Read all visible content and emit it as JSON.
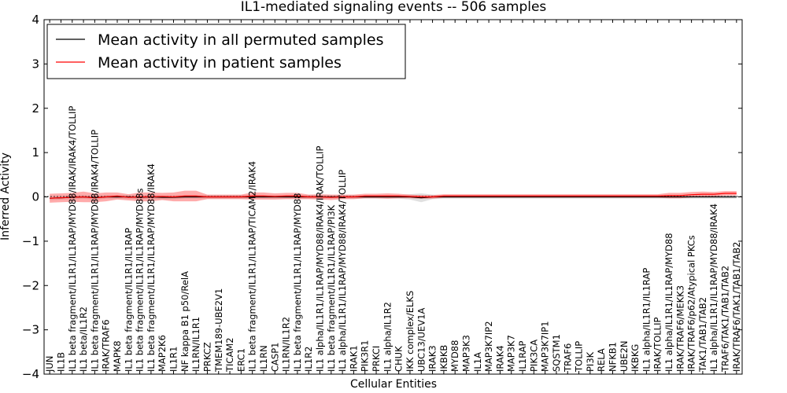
{
  "chart_data": {
    "type": "line",
    "title": "IL1-mediated signaling events -- 506 samples",
    "xlabel": "Cellular Entities",
    "ylabel": "Inferred Activity",
    "ylim": [
      -4,
      4
    ],
    "yticks": [
      -4,
      -3,
      -2,
      -1,
      0,
      1,
      2,
      3,
      4
    ],
    "ytick_labels": [
      "−4",
      "−3",
      "−2",
      "−1",
      "0",
      "1",
      "2",
      "3",
      "4"
    ],
    "legend_position": "upper-left",
    "categories": [
      "JUN",
      "IL1B",
      "IL1 beta fragment/IL1R1/IL1RAP/MYD88/IRAK/IRAK4/TOLLIP",
      "IL1 beta/IL1R2",
      "IL1 beta fragment/IL1R1/IL1RAP/MYD88/IRAK4/TOLLIP",
      "IRAK/TRAF6",
      "MAPK8",
      "IL1 beta fragment/IL1R1/IL1RAP",
      "IL1 beta fragment/IL1R1/IL1RAP/MYD88s",
      "IL1 beta fragment/IL1R1/IL1RAP/MYD88/IRAK4",
      "MAP2K6",
      "IL1R1",
      "NF kappa B1 p50/RelA",
      "IL1RN/IL1R1",
      "PRKCZ",
      "TMEM189-UBE2V1",
      "TICAM2",
      "ERC1",
      "IL1 beta fragment/IL1R1/IL1RAP/TICAM2/IRAK4",
      "IL1RN",
      "CASP1",
      "IL1RN/IL1R2",
      "IL1 beta fragment/IL1R1/IL1RAP/MYD88",
      "IL1R2",
      "IL1 alpha/IL1R1/IL1RAP/MYD88/IRAK4/IRAK/TOLLIP",
      "IL1 beta fragment/IL1R1/IL1RAP/PI3K",
      "IL1 alpha/IL1R1/IL1RAP/MYD88/IRAK4/TOLLIP",
      "IRAK1",
      "PIK3R1",
      "PRKCI",
      "IL1 alpha/IL1R2",
      "CHUK",
      "IKK complex/ELKS",
      "UBC13/UEV1A",
      "IRAK3",
      "IKBKB",
      "MYD88",
      "MAP3K3",
      "IL1A",
      "MAP3K7IP2",
      "IRAK4",
      "MAP3K7",
      "IL1RAP",
      "PIK3CA",
      "MAP3K7IP1",
      "SQSTM1",
      "TRAF6",
      "TOLLIP",
      "PI3K",
      "RELA",
      "NFKB1",
      "UBE2N",
      "IKBKG",
      "IL1 alpha/IL1R1/IL1RAP",
      "IRAK/TOLLIP",
      "IL1 alpha/IL1R1/IL1RAP/MYD88",
      "IRAK/TRAF6/MEKK3",
      "IRAK/TRAF6/p62/Atypical PKCs",
      "TAK1/TAB1/TAB2",
      "IL1 alpha/IL1R1/IL1RAP/MYD88/IRAK4",
      "TRAF6/TAK1/TAB1/TAB2",
      "IRAK/TRAF6/TAK1/TAB1/TAB2"
    ],
    "series": [
      {
        "name": "Mean activity in all permuted samples",
        "color": "#000000",
        "values": [
          -0.03,
          -0.02,
          -0.01,
          0.0,
          -0.02,
          0.0,
          0.0,
          0.0,
          -0.01,
          0.0,
          -0.01,
          -0.01,
          0.0,
          0.0,
          0.0,
          0.0,
          0.0,
          0.0,
          0.0,
          0.0,
          0.0,
          0.0,
          0.0,
          0.0,
          0.0,
          0.0,
          0.0,
          0.0,
          0.0,
          0.0,
          0.0,
          0.0,
          0.0,
          -0.02,
          0.0,
          0.0,
          0.0,
          0.0,
          0.0,
          0.0,
          0.0,
          0.0,
          0.0,
          0.0,
          0.0,
          0.0,
          0.0,
          0.0,
          0.0,
          0.0,
          0.0,
          0.0,
          0.0,
          0.0,
          0.0,
          0.0,
          0.0,
          0.0,
          0.0,
          0.0,
          0.0,
          0.0
        ],
        "spread": [
          0.04,
          0.04,
          0.04,
          0.04,
          0.04,
          0.04,
          0.04,
          0.04,
          0.04,
          0.04,
          0.04,
          0.04,
          0.04,
          0.04,
          0.04,
          0.04,
          0.04,
          0.04,
          0.04,
          0.04,
          0.04,
          0.04,
          0.04,
          0.04,
          0.04,
          0.04,
          0.04,
          0.04,
          0.04,
          0.04,
          0.04,
          0.04,
          0.06,
          0.1,
          0.05,
          0.04,
          0.04,
          0.04,
          0.04,
          0.04,
          0.04,
          0.04,
          0.04,
          0.04,
          0.04,
          0.04,
          0.04,
          0.04,
          0.04,
          0.04,
          0.04,
          0.04,
          0.04,
          0.04,
          0.04,
          0.04,
          0.04,
          0.04,
          0.04,
          0.04,
          0.04,
          0.04
        ]
      },
      {
        "name": "Mean activity in patient samples",
        "color": "#ff0000",
        "values": [
          -0.03,
          -0.02,
          -0.01,
          0.0,
          -0.02,
          0.0,
          0.02,
          -0.01,
          0.0,
          0.0,
          0.01,
          0.0,
          0.02,
          0.02,
          0.0,
          0.0,
          0.0,
          0.0,
          0.02,
          0.02,
          0.01,
          0.02,
          0.02,
          0.0,
          0.0,
          -0.01,
          0.0,
          0.0,
          0.02,
          0.02,
          0.02,
          0.02,
          0.01,
          0.0,
          0.0,
          0.02,
          0.02,
          0.02,
          0.02,
          0.02,
          0.02,
          0.02,
          0.02,
          0.02,
          0.02,
          0.02,
          0.02,
          0.02,
          0.02,
          0.02,
          0.02,
          0.02,
          0.02,
          0.02,
          0.02,
          0.03,
          0.03,
          0.05,
          0.06,
          0.06,
          0.08,
          0.08
        ],
        "spread": [
          0.1,
          0.1,
          0.1,
          0.12,
          0.1,
          0.1,
          0.08,
          0.07,
          0.1,
          0.1,
          0.08,
          0.1,
          0.12,
          0.12,
          0.05,
          0.05,
          0.05,
          0.05,
          0.08,
          0.08,
          0.07,
          0.07,
          0.07,
          0.05,
          0.06,
          0.06,
          0.05,
          0.05,
          0.05,
          0.05,
          0.06,
          0.05,
          0.04,
          0.04,
          0.04,
          0.04,
          0.04,
          0.04,
          0.04,
          0.04,
          0.04,
          0.04,
          0.04,
          0.04,
          0.04,
          0.04,
          0.04,
          0.04,
          0.04,
          0.04,
          0.04,
          0.04,
          0.04,
          0.04,
          0.04,
          0.06,
          0.06,
          0.06,
          0.06,
          0.05,
          0.05,
          0.05
        ]
      }
    ]
  }
}
